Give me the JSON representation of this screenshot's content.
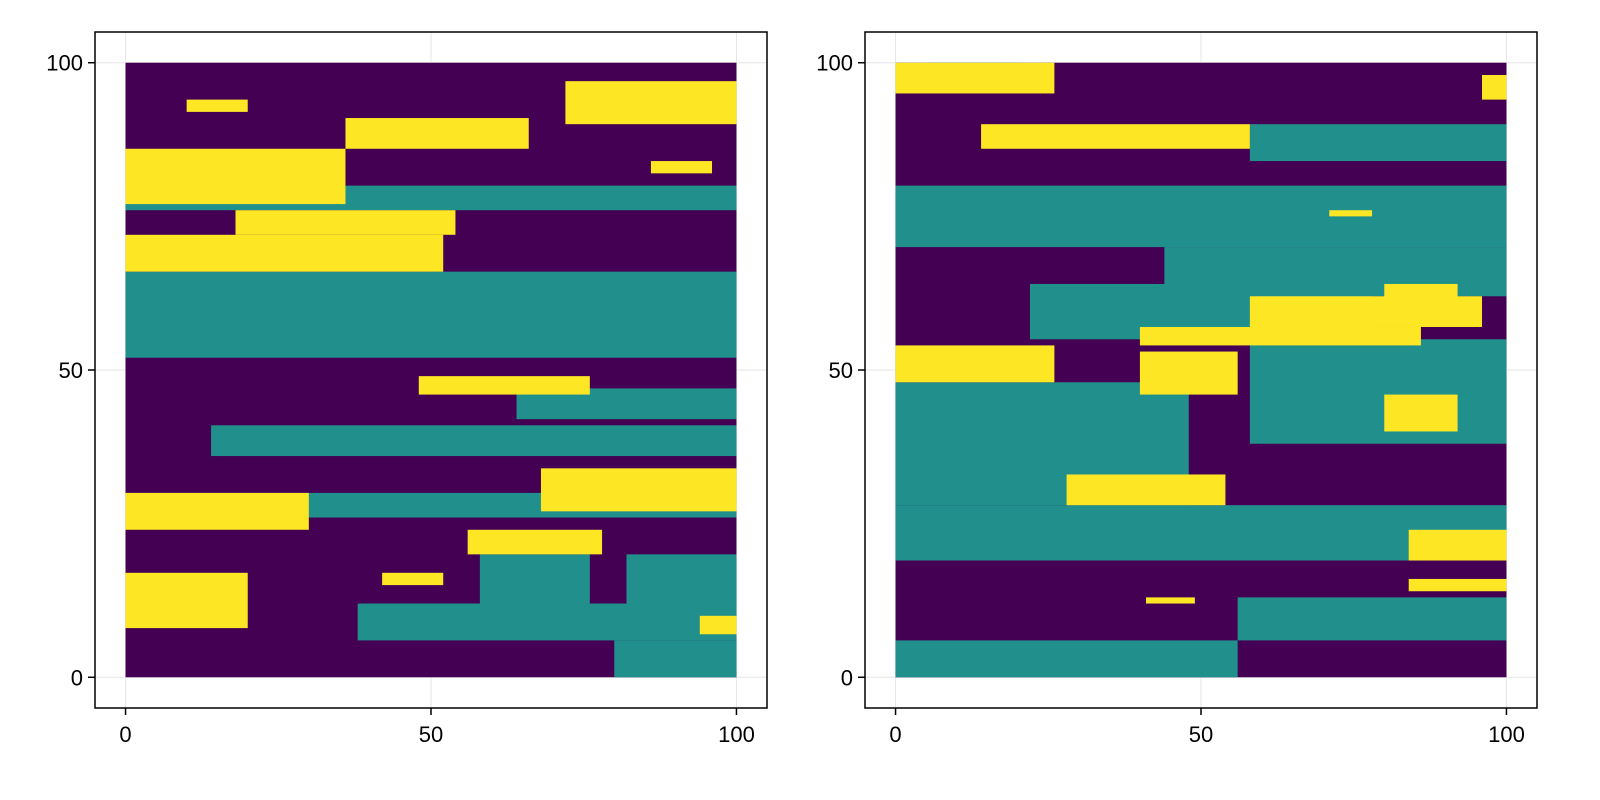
{
  "chart_data": [
    {
      "type": "heatmap",
      "title": "",
      "xlabel": "",
      "ylabel": "",
      "xlim": [
        -5,
        105
      ],
      "ylim": [
        -5,
        105
      ],
      "x_extent": [
        0,
        100
      ],
      "y_extent": [
        0,
        100
      ],
      "grid": true,
      "xticks": [
        "0",
        "50",
        "100"
      ],
      "yticks": [
        "0",
        "50",
        "100"
      ],
      "tick_values": [
        0,
        50,
        100
      ],
      "categories": [
        0,
        1,
        2
      ],
      "colormap": {
        "0": "#440154",
        "1": "#21908C",
        "2": "#FDE725"
      },
      "layers": [
        {
          "category": 1,
          "y0": 52,
          "y1": 66,
          "segments": [
            [
              0,
              100
            ]
          ]
        },
        {
          "category": 1,
          "y0": 76,
          "y1": 80,
          "segments": [
            [
              0,
              100
            ]
          ]
        },
        {
          "category": 1,
          "y0": 26,
          "y1": 30,
          "segments": [
            [
              0,
              100
            ]
          ]
        },
        {
          "category": 1,
          "y0": 6,
          "y1": 12,
          "segments": [
            [
              38,
              100
            ]
          ]
        },
        {
          "category": 1,
          "y0": 0,
          "y1": 6,
          "segments": [
            [
              80,
              100
            ]
          ]
        },
        {
          "category": 1,
          "y0": 12,
          "y1": 20,
          "segments": [
            [
              58,
              76
            ],
            [
              82,
              100
            ]
          ]
        },
        {
          "category": 1,
          "y0": 36,
          "y1": 41,
          "segments": [
            [
              14,
              100
            ]
          ]
        },
        {
          "category": 1,
          "y0": 42,
          "y1": 47,
          "segments": [
            [
              64,
              100
            ]
          ]
        },
        {
          "category": 2,
          "y0": 77,
          "y1": 86,
          "segments": [
            [
              0,
              36
            ]
          ]
        },
        {
          "category": 2,
          "y0": 66,
          "y1": 72,
          "segments": [
            [
              0,
              52
            ]
          ]
        },
        {
          "category": 2,
          "y0": 72,
          "y1": 76,
          "segments": [
            [
              18,
              54
            ]
          ]
        },
        {
          "category": 2,
          "y0": 86,
          "y1": 91,
          "segments": [
            [
              36,
              66
            ]
          ]
        },
        {
          "category": 2,
          "y0": 90,
          "y1": 97,
          "segments": [
            [
              72,
              100
            ]
          ]
        },
        {
          "category": 2,
          "y0": 46,
          "y1": 49,
          "segments": [
            [
              48,
              76
            ]
          ]
        },
        {
          "category": 2,
          "y0": 27,
          "y1": 34,
          "segments": [
            [
              68,
              100
            ]
          ]
        },
        {
          "category": 2,
          "y0": 24,
          "y1": 30,
          "segments": [
            [
              0,
              30
            ]
          ]
        },
        {
          "category": 2,
          "y0": 8,
          "y1": 17,
          "segments": [
            [
              0,
              20
            ]
          ]
        },
        {
          "category": 2,
          "y0": 7,
          "y1": 10,
          "segments": [
            [
              94,
              100
            ]
          ]
        },
        {
          "category": 2,
          "y0": 20,
          "y1": 24,
          "segments": [
            [
              56,
              78
            ]
          ]
        },
        {
          "category": 2,
          "y0": 82,
          "y1": 84,
          "segments": [
            [
              86,
              96
            ]
          ]
        },
        {
          "category": 2,
          "y0": 92,
          "y1": 94,
          "segments": [
            [
              10,
              20
            ]
          ]
        },
        {
          "category": 2,
          "y0": 15,
          "y1": 17,
          "segments": [
            [
              42,
              52
            ]
          ]
        }
      ]
    },
    {
      "type": "heatmap",
      "title": "",
      "xlabel": "",
      "ylabel": "",
      "xlim": [
        -5,
        105
      ],
      "ylim": [
        -5,
        105
      ],
      "x_extent": [
        0,
        100
      ],
      "y_extent": [
        0,
        100
      ],
      "grid": true,
      "xticks": [
        "0",
        "50",
        "100"
      ],
      "yticks": [
        "0",
        "50",
        "100"
      ],
      "tick_values": [
        0,
        50,
        100
      ],
      "categories": [
        0,
        1,
        2
      ],
      "colormap": {
        "0": "#440154",
        "1": "#21908C",
        "2": "#FDE725"
      },
      "layers": [
        {
          "category": 1,
          "y0": 0,
          "y1": 6,
          "segments": [
            [
              0,
              56
            ]
          ]
        },
        {
          "category": 1,
          "y0": 6,
          "y1": 13,
          "segments": [
            [
              56,
              100
            ]
          ]
        },
        {
          "category": 1,
          "y0": 19,
          "y1": 28,
          "segments": [
            [
              0,
              100
            ]
          ]
        },
        {
          "category": 1,
          "y0": 28,
          "y1": 48,
          "segments": [
            [
              0,
              48
            ]
          ]
        },
        {
          "category": 1,
          "y0": 38,
          "y1": 55,
          "segments": [
            [
              58,
              100
            ]
          ]
        },
        {
          "category": 1,
          "y0": 55,
          "y1": 64,
          "segments": [
            [
              22,
              78
            ]
          ]
        },
        {
          "category": 1,
          "y0": 62,
          "y1": 70,
          "segments": [
            [
              44,
              100
            ]
          ]
        },
        {
          "category": 1,
          "y0": 70,
          "y1": 80,
          "segments": [
            [
              0,
              100
            ]
          ]
        },
        {
          "category": 1,
          "y0": 84,
          "y1": 90,
          "segments": [
            [
              58,
              100
            ]
          ]
        },
        {
          "category": 1,
          "y0": 98,
          "y1": 100,
          "segments": [
            [
              6,
              20
            ]
          ]
        },
        {
          "category": 2,
          "y0": 95,
          "y1": 100,
          "segments": [
            [
              0,
              26
            ]
          ]
        },
        {
          "category": 2,
          "y0": 48,
          "y1": 54,
          "segments": [
            [
              0,
              26
            ]
          ]
        },
        {
          "category": 2,
          "y0": 54,
          "y1": 57,
          "segments": [
            [
              40,
              86
            ]
          ]
        },
        {
          "category": 2,
          "y0": 57,
          "y1": 62,
          "segments": [
            [
              58,
              96
            ]
          ]
        },
        {
          "category": 2,
          "y0": 46,
          "y1": 53,
          "segments": [
            [
              40,
              56
            ]
          ]
        },
        {
          "category": 2,
          "y0": 40,
          "y1": 46,
          "segments": [
            [
              80,
              92
            ]
          ]
        },
        {
          "category": 2,
          "y0": 60,
          "y1": 64,
          "segments": [
            [
              80,
              92
            ]
          ]
        },
        {
          "category": 2,
          "y0": 28,
          "y1": 33,
          "segments": [
            [
              28,
              54
            ]
          ]
        },
        {
          "category": 2,
          "y0": 86,
          "y1": 90,
          "segments": [
            [
              14,
              58
            ]
          ]
        },
        {
          "category": 2,
          "y0": 14,
          "y1": 16,
          "segments": [
            [
              84,
              100
            ]
          ]
        },
        {
          "category": 2,
          "y0": 19,
          "y1": 24,
          "segments": [
            [
              84,
              100
            ]
          ]
        },
        {
          "category": 2,
          "y0": 12,
          "y1": 13,
          "segments": [
            [
              41,
              49
            ]
          ]
        },
        {
          "category": 2,
          "y0": 94,
          "y1": 98,
          "segments": [
            [
              96,
              100
            ]
          ]
        },
        {
          "category": 2,
          "y0": 75,
          "y1": 76,
          "segments": [
            [
              71,
              78
            ]
          ]
        }
      ]
    }
  ]
}
